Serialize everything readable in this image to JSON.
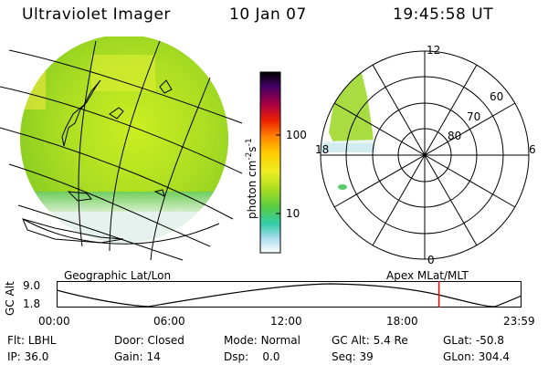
{
  "header": {
    "instrument": "Ultraviolet Imager",
    "date": "10 Jan 07",
    "time": "19:45:58 UT"
  },
  "colorbar": {
    "label": "photon cm",
    "label_sup1": "-2",
    "label_s": "s",
    "label_sup2": "-1",
    "ticks": [
      "100",
      "10"
    ]
  },
  "polar_plot": {
    "mlt_labels": [
      "12",
      "18",
      "6",
      "0"
    ],
    "lat_labels": [
      "60",
      "70",
      "80"
    ]
  },
  "coord_labels": {
    "left": "Geographic Lat/Lon",
    "right": "Apex  MLat/MLT"
  },
  "altitude_plot": {
    "axis_label": "GC Alt",
    "y_ticks": [
      "9.0",
      "1.8"
    ],
    "x_ticks": [
      "00:00",
      "06:00",
      "12:00",
      "18:00",
      "23:59"
    ],
    "current_time_fraction": 0.823,
    "marker_color": "#ff0000"
  },
  "status": {
    "row1": [
      {
        "key": "Flt:",
        "value": "LBHL"
      },
      {
        "key": "Door:",
        "value": "Closed"
      },
      {
        "key": "Mode:",
        "value": "Normal"
      },
      {
        "key": "GC Alt:",
        "value": "5.4 Re"
      },
      {
        "key": "GLat:",
        "value": "-50.8"
      }
    ],
    "row2": [
      {
        "key": "IP:",
        "value": "36.0"
      },
      {
        "key": "Gain:",
        "value": "14"
      },
      {
        "key": "Dsp:",
        "value": "0.0"
      },
      {
        "key": "Seq:",
        "value": "39"
      },
      {
        "key": "GLon:",
        "value": "304.4"
      }
    ]
  }
}
